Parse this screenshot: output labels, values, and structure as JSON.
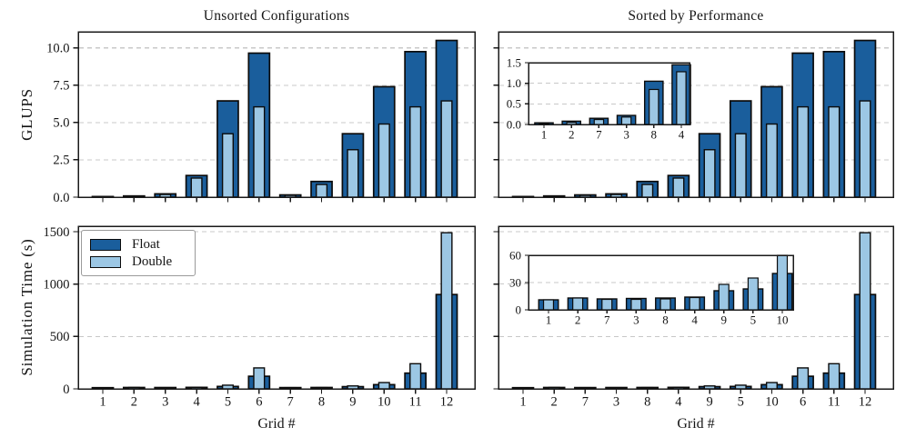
{
  "figure": {
    "col_titles": [
      "Unsorted Configurations",
      "Sorted by Performance"
    ],
    "row_ylabels": [
      "GLUPS",
      "Simulation Time (s)"
    ],
    "xlabel": "Grid #",
    "legend": {
      "items": [
        {
          "label": "Float",
          "color": "#1a5e9c"
        },
        {
          "label": "Double",
          "color": "#9cc7e4"
        }
      ]
    },
    "colors": {
      "float": "#1a5e9c",
      "double": "#9cc7e4",
      "edge": "#0b0b0b",
      "grid": "#c8c8c8",
      "spine": "#1a1a1a",
      "text": "#141414"
    }
  },
  "chart_data": [
    {
      "id": "glups-unsorted",
      "type": "bar",
      "title": "Unsorted Configurations",
      "ylabel": "GLUPS",
      "categories": [
        "1",
        "2",
        "3",
        "4",
        "5",
        "6",
        "7",
        "8",
        "9",
        "10",
        "11",
        "12"
      ],
      "series": [
        {
          "name": "Float",
          "values": [
            0.04,
            0.08,
            0.22,
            1.45,
            6.45,
            9.65,
            0.15,
            1.05,
            4.25,
            7.4,
            9.75,
            10.5
          ]
        },
        {
          "name": "Double",
          "values": [
            0.02,
            0.05,
            0.18,
            1.28,
            4.25,
            6.05,
            0.12,
            0.85,
            3.18,
            4.9,
            6.05,
            6.45
          ]
        }
      ],
      "ylim": [
        0,
        11.08
      ],
      "yticks": [
        0,
        2.5,
        5,
        7.5,
        10
      ],
      "ytick_labels": [
        "0.0",
        "2.5",
        "5.0",
        "7.5",
        "10.0"
      ],
      "show_ytick_labels": true,
      "show_xtick_labels": false,
      "grid": true
    },
    {
      "id": "glups-sorted",
      "type": "bar",
      "title": "Sorted by Performance",
      "categories": [
        "1",
        "2",
        "7",
        "3",
        "8",
        "4",
        "9",
        "5",
        "10",
        "6",
        "11",
        "12"
      ],
      "series": [
        {
          "name": "Float",
          "values": [
            0.04,
            0.08,
            0.15,
            0.22,
            1.05,
            1.45,
            4.25,
            6.45,
            7.4,
            9.65,
            9.75,
            10.5
          ]
        },
        {
          "name": "Double",
          "values": [
            0.02,
            0.05,
            0.12,
            0.18,
            0.85,
            1.28,
            3.18,
            4.25,
            4.9,
            6.05,
            6.05,
            6.45
          ]
        }
      ],
      "ylim": [
        0,
        11.08
      ],
      "yticks": [
        0,
        2.5,
        5,
        7.5,
        10
      ],
      "ytick_labels": [
        "0.0",
        "2.5",
        "5.0",
        "7.5",
        "10.0"
      ],
      "show_ytick_labels": false,
      "show_xtick_labels": false,
      "grid": true
    },
    {
      "id": "time-unsorted",
      "type": "bar",
      "ylabel": "Simulation Time (s)",
      "xlabel": "Grid #",
      "categories": [
        "1",
        "2",
        "3",
        "4",
        "5",
        "6",
        "7",
        "8",
        "9",
        "10",
        "11",
        "12"
      ],
      "series": [
        {
          "name": "Float",
          "values": [
            11,
            13,
            12.5,
            14,
            23,
            120,
            12,
            13,
            21,
            40,
            150,
            900
          ]
        },
        {
          "name": "Double",
          "values": [
            11,
            13,
            11.5,
            13.5,
            35,
            200,
            11.5,
            12,
            28,
            60,
            240,
            1490
          ]
        }
      ],
      "ylim": [
        0,
        1552
      ],
      "yticks": [
        0,
        500,
        1000,
        1500
      ],
      "ytick_labels": [
        "0",
        "500",
        "1000",
        "1500"
      ],
      "show_ytick_labels": true,
      "show_xtick_labels": true,
      "grid": true
    },
    {
      "id": "time-sorted",
      "type": "bar",
      "xlabel": "Grid #",
      "categories": [
        "1",
        "2",
        "7",
        "3",
        "8",
        "4",
        "9",
        "5",
        "10",
        "6",
        "11",
        "12"
      ],
      "series": [
        {
          "name": "Float",
          "values": [
            11,
            13,
            12,
            12.5,
            13,
            14,
            21,
            23,
            40,
            120,
            150,
            900
          ]
        },
        {
          "name": "Double",
          "values": [
            11,
            13,
            11.5,
            11.5,
            12,
            13.5,
            28,
            35,
            60,
            200,
            240,
            1490
          ]
        }
      ],
      "ylim": [
        0,
        1552
      ],
      "yticks": [
        0,
        500,
        1000,
        1500
      ],
      "ytick_labels": [
        "0",
        "500",
        "1000",
        "1500"
      ],
      "show_ytick_labels": false,
      "show_xtick_labels": true,
      "grid": true
    },
    {
      "id": "glups-sorted-inset",
      "type": "bar",
      "categories": [
        "1",
        "2",
        "7",
        "3",
        "8",
        "4"
      ],
      "series": [
        {
          "name": "Float",
          "values": [
            0.04,
            0.08,
            0.15,
            0.22,
            1.05,
            1.45
          ]
        },
        {
          "name": "Double",
          "values": [
            0.02,
            0.05,
            0.12,
            0.18,
            0.85,
            1.28
          ]
        }
      ],
      "ylim": [
        0,
        1.5
      ],
      "yticks": [
        0,
        0.5,
        1.0,
        1.5
      ],
      "ytick_labels": [
        "0.0",
        "0.5",
        "1.0",
        "1.5"
      ],
      "show_ytick_labels": true,
      "show_xtick_labels": true,
      "grid": true
    },
    {
      "id": "time-sorted-inset",
      "type": "bar",
      "categories": [
        "1",
        "2",
        "7",
        "3",
        "8",
        "4",
        "9",
        "5",
        "10"
      ],
      "series": [
        {
          "name": "Float",
          "values": [
            11,
            13,
            12,
            12.5,
            13,
            14,
            21,
            23,
            40
          ]
        },
        {
          "name": "Double",
          "values": [
            11,
            13,
            11.5,
            11.5,
            12,
            13.5,
            28,
            35,
            60
          ]
        }
      ],
      "ylim": [
        0,
        60
      ],
      "yticks": [
        0,
        30,
        60
      ],
      "ytick_labels": [
        "0",
        "30",
        "60"
      ],
      "show_ytick_labels": true,
      "show_xtick_labels": true,
      "grid": true
    }
  ]
}
